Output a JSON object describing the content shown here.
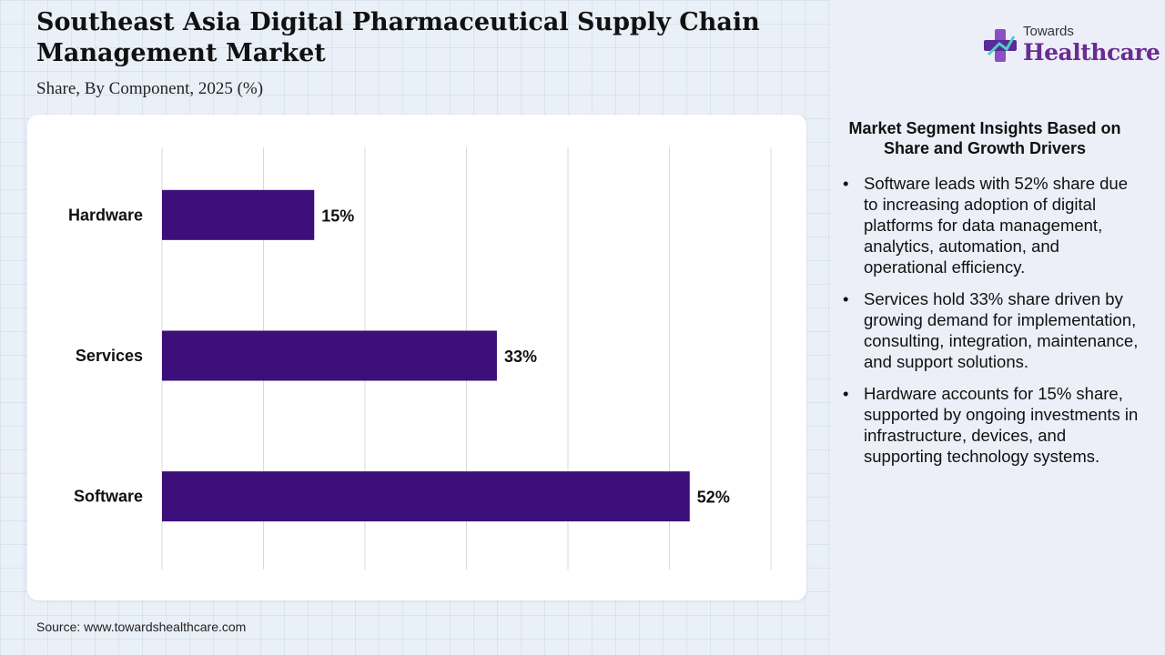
{
  "title": "Southeast Asia Digital Pharmaceutical Supply Chain Management Market",
  "subtitle": "Share, By Component, 2025 (%)",
  "logo": {
    "top_text": "Towards",
    "main_text": "Healthcare",
    "icon": "cross-icon",
    "color": "#6a2c91"
  },
  "source": "Source: www.towardshealthcare.com",
  "insights": {
    "title": "Market Segment Insights Based on Share and Growth Drivers",
    "items": [
      "Software leads with 52% share due to increasing adoption of digital platforms for data management, analytics, automation, and operational efficiency.",
      "Services hold 33% share driven by growing demand for implementation, consulting, integration, maintenance, and support solutions.",
      "Hardware accounts for 15% share, supported by ongoing investments in infrastructure, devices, and supporting technology systems."
    ]
  },
  "chart_data": {
    "type": "bar",
    "orientation": "horizontal",
    "categories": [
      "Hardware",
      "Services",
      "Software"
    ],
    "values": [
      15,
      33,
      52
    ],
    "value_labels": [
      "15%",
      "33%",
      "52%"
    ],
    "xlim": [
      0,
      60
    ],
    "grid": true,
    "bar_color": "#3d0f7a",
    "title": "",
    "xlabel": "",
    "ylabel": ""
  }
}
